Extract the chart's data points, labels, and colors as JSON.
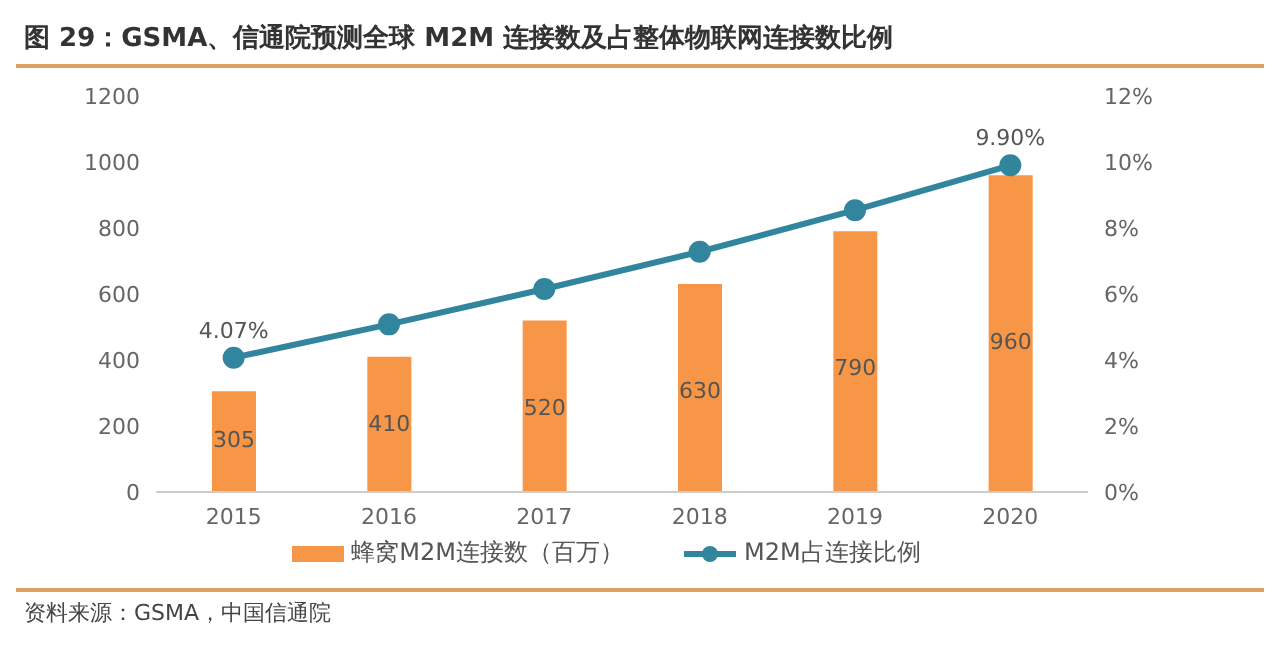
{
  "chart_data": {
    "type": "bar",
    "title": "图 29：GSMA、信通院预测全球 M2M 连接数及占整体物联网连接数比例",
    "categories": [
      "2015",
      "2016",
      "2017",
      "2018",
      "2019",
      "2020"
    ],
    "series": [
      {
        "name": "蜂窝M2M连接数（百万）",
        "color": "#f79646",
        "values": [
          305,
          410,
          520,
          630,
          790,
          960
        ],
        "value_labels": [
          "305",
          "410",
          "520",
          "630",
          "790",
          "960"
        ]
      },
      {
        "name": "M2M占连接比例",
        "type": "line",
        "axis": "y2",
        "color": "#31859c",
        "marker": "circle",
        "values": [
          4.07,
          5.08,
          6.15,
          7.28,
          8.54,
          9.9
        ],
        "value_labels": [
          "4.07%",
          null,
          null,
          null,
          null,
          "9.90%"
        ]
      }
    ],
    "ylim": [
      0,
      1200
    ],
    "yticks": [
      0,
      200,
      400,
      600,
      800,
      1000,
      1200
    ],
    "y2lim": [
      0,
      12
    ],
    "y2ticks": [
      {
        "value": 0,
        "label": "0%"
      },
      {
        "value": 2,
        "label": "2%"
      },
      {
        "value": 4,
        "label": "4%"
      },
      {
        "value": 6,
        "label": "6%"
      },
      {
        "value": 8,
        "label": "8%"
      },
      {
        "value": 10,
        "label": "10%"
      },
      {
        "value": 12,
        "label": "12%"
      }
    ],
    "grid": false,
    "legend": "bottom",
    "annotations": [
      "资料来源：GSMA，中国信通院"
    ]
  }
}
